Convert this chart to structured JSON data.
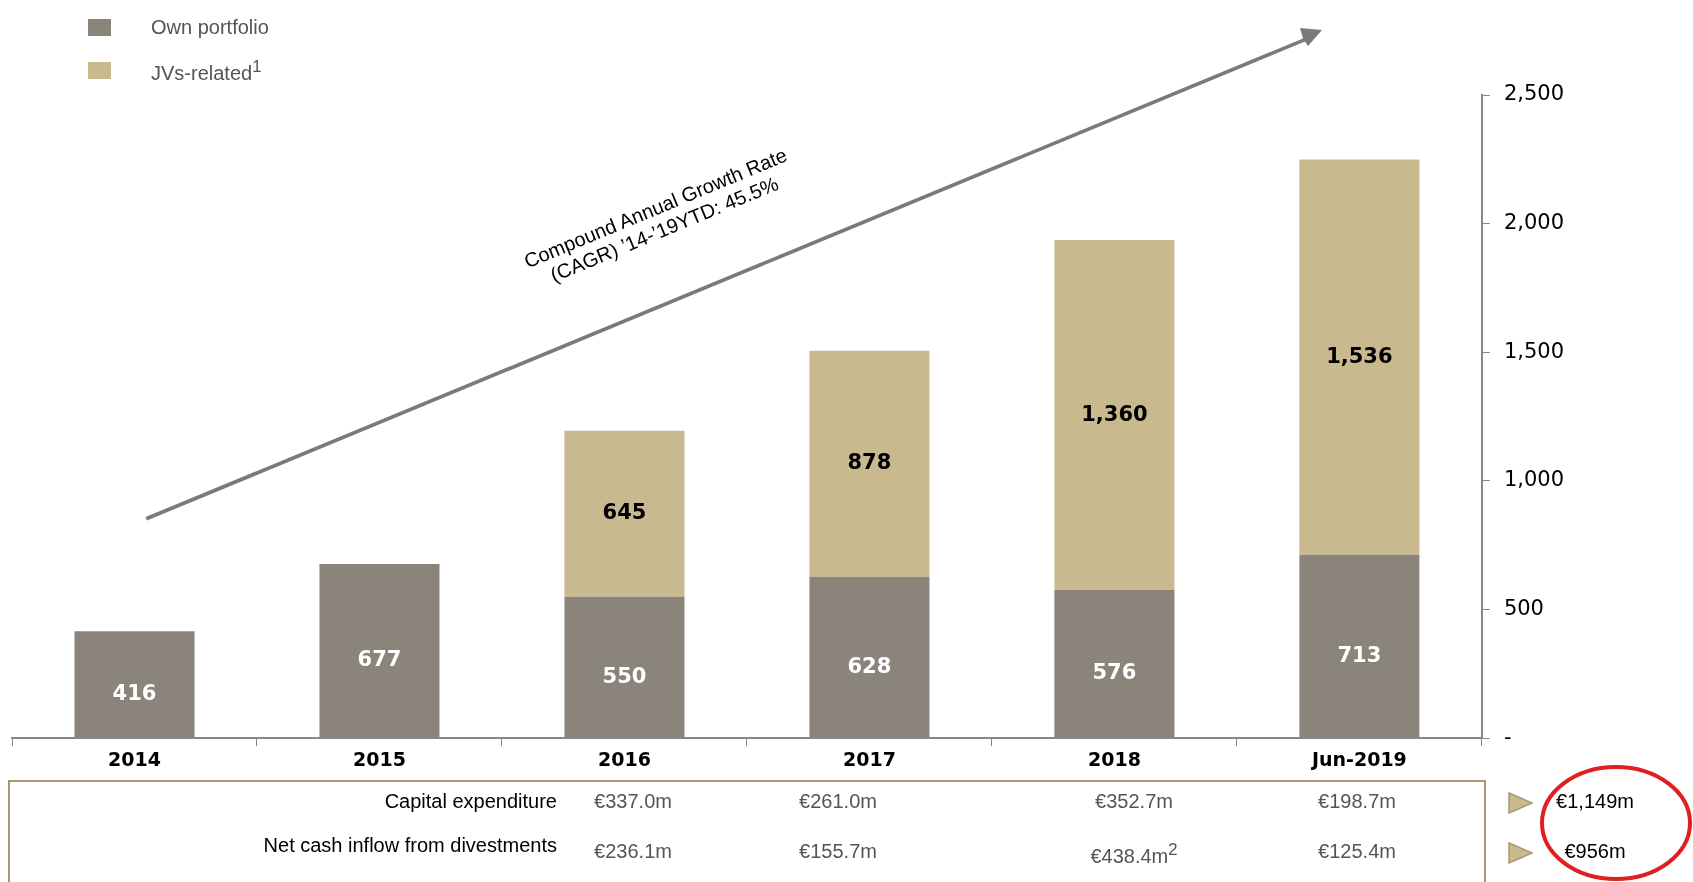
{
  "chart_data": {
    "type": "bar",
    "stacked": true,
    "categories": [
      "2014",
      "2015",
      "2016",
      "2017",
      "2018",
      "Jun-2019"
    ],
    "series": [
      {
        "name": "Own portfolio",
        "color": "#8b847a",
        "values": [
          416,
          677,
          550,
          628,
          576,
          713
        ],
        "value_labels": [
          "416",
          "677",
          "550",
          "628",
          "576",
          "713"
        ]
      },
      {
        "name": "JVs-related$^{1}$",
        "color": "#c8b98f",
        "values": [
          null,
          null,
          645,
          878,
          1360,
          1536
        ],
        "value_labels": [
          null,
          null,
          "645",
          "878",
          "1,360",
          "1,536"
        ]
      }
    ],
    "ylim": [
      0,
      2500
    ],
    "yticks": [
      {
        "value": 0,
        "label": "-"
      },
      500,
      {
        "value": 1000,
        "label": "1,000"
      },
      {
        "value": 1500,
        "label": "1,500"
      },
      {
        "value": 2000,
        "label": "2,000"
      },
      {
        "value": 2500,
        "label": "2,500"
      }
    ],
    "grid": false,
    "legend": "top left",
    "annotations": [
      "Compound Annual Growth Rate (CAGR) ’14-’19YTD: 45.5%",
      "Capital expenditure",
      "€337.0m",
      "€261.0m",
      "€352.7m",
      "€198.7m",
      "€1,149m",
      "Net cash inflow from divestments",
      "€236.1m",
      "€155.7m",
      "€438.4m$^{2}$",
      "€125.4m",
      "€956m"
    ]
  }
}
